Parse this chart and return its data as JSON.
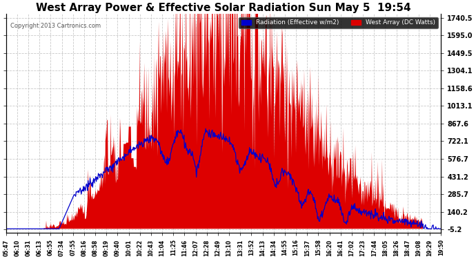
{
  "title": "West Array Power & Effective Solar Radiation Sun May 5  19:54",
  "copyright": "Copyright 2013 Cartronics.com",
  "legend_labels": [
    "Radiation (Effective w/m2)",
    "West Array (DC Watts)"
  ],
  "legend_colors": [
    "#0000ff",
    "#cc0000"
  ],
  "yticks": [
    1740.5,
    1595.0,
    1449.5,
    1304.1,
    1158.6,
    1013.1,
    867.6,
    722.1,
    576.7,
    431.2,
    285.7,
    140.2,
    -5.2
  ],
  "ymin": -5.2,
  "ymax": 1740.5,
  "bg_color": "#ffffff",
  "plot_bg_color": "#ffffff",
  "grid_color": "#bbbbbb",
  "title_color": "#000000",
  "title_fontsize": 11,
  "fill_color_red": "#dd0000",
  "fill_color_blue": "#0000cc",
  "displayed_xticks": [
    "05:47",
    "06:10",
    "06:31",
    "06:13",
    "06:55",
    "07:34",
    "07:55",
    "08:16",
    "08:58",
    "09:19",
    "09:40",
    "10:01",
    "10:22",
    "10:43",
    "11:04",
    "11:25",
    "11:46",
    "12:07",
    "12:28",
    "12:49",
    "13:10",
    "13:31",
    "13:52",
    "14:13",
    "14:34",
    "14:55",
    "15:16",
    "15:37",
    "15:58",
    "16:20",
    "16:41",
    "17:02",
    "17:23",
    "17:44",
    "18:05",
    "18:26",
    "18:47",
    "19:08",
    "19:29",
    "19:50"
  ]
}
